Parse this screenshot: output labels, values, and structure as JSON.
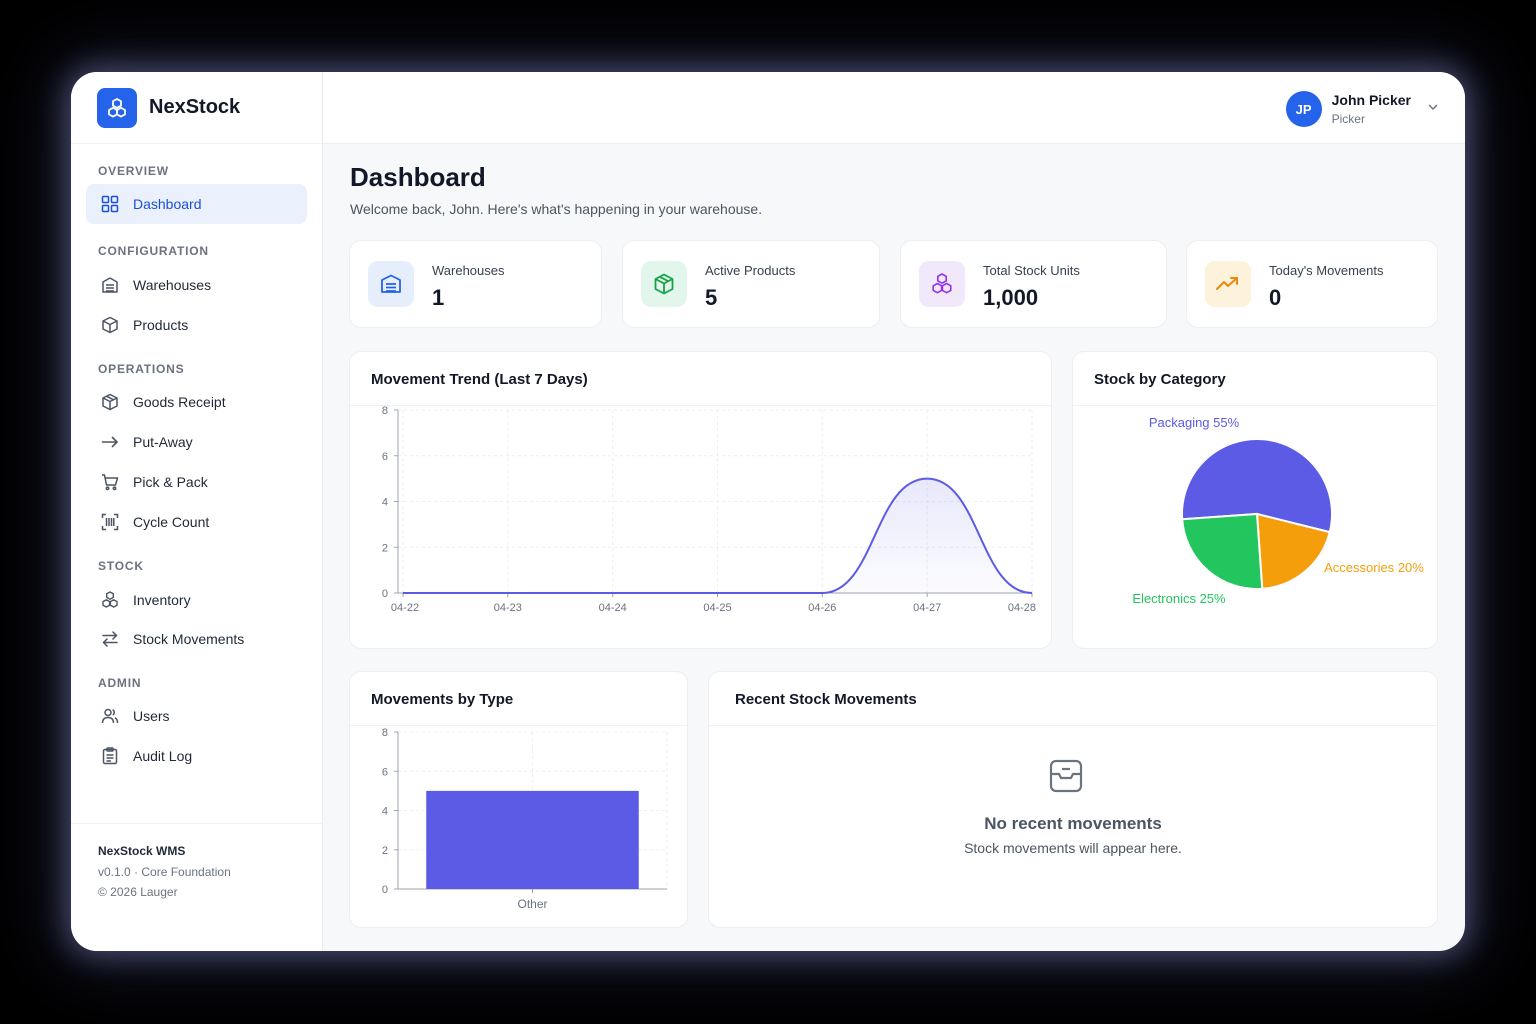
{
  "brand": {
    "name": "NexStock",
    "accent": "#2563eb"
  },
  "sidebar": {
    "sections": [
      {
        "label": "OVERVIEW",
        "items": [
          {
            "label": "Dashboard",
            "icon": "grid-icon",
            "active": true
          }
        ]
      },
      {
        "label": "CONFIGURATION",
        "items": [
          {
            "label": "Warehouses",
            "icon": "warehouse-icon"
          },
          {
            "label": "Products",
            "icon": "cube-icon"
          }
        ]
      },
      {
        "label": "OPERATIONS",
        "items": [
          {
            "label": "Goods Receipt",
            "icon": "package-icon"
          },
          {
            "label": "Put-Away",
            "icon": "arrow-right-icon"
          },
          {
            "label": "Pick & Pack",
            "icon": "cart-icon"
          },
          {
            "label": "Cycle Count",
            "icon": "scan-icon"
          }
        ]
      },
      {
        "label": "STOCK",
        "items": [
          {
            "label": "Inventory",
            "icon": "boxes-icon"
          },
          {
            "label": "Stock Movements",
            "icon": "swap-icon"
          }
        ]
      },
      {
        "label": "ADMIN",
        "items": [
          {
            "label": "Users",
            "icon": "users-icon"
          },
          {
            "label": "Audit Log",
            "icon": "clipboard-icon"
          }
        ]
      }
    ],
    "footer": {
      "product": "NexStock WMS",
      "version": "v0.1.0 · Core Foundation",
      "copyright": "© 2026 Lauger"
    }
  },
  "header": {
    "user": {
      "initials": "JP",
      "name": "John Picker",
      "role": "Picker"
    }
  },
  "page": {
    "title": "Dashboard",
    "subtitle": "Welcome back, John. Here's what's happening in your warehouse."
  },
  "stats": [
    {
      "label": "Warehouses",
      "value": "1",
      "icon": "warehouse-icon",
      "color": "#2563eb",
      "bg": "#e6eefc"
    },
    {
      "label": "Active Products",
      "value": "5",
      "icon": "cube-icon",
      "color": "#16a34a",
      "bg": "#e3f6ec"
    },
    {
      "label": "Total Stock Units",
      "value": "1,000",
      "icon": "boxes-icon",
      "color": "#9333ea",
      "bg": "#f1e8fc"
    },
    {
      "label": "Today's Movements",
      "value": "0",
      "icon": "trend-up-icon",
      "color": "#ea8a0c",
      "bg": "#fdf2dc"
    }
  ],
  "trend_card": {
    "title": "Movement Trend (Last 7 Days)"
  },
  "category_card": {
    "title": "Stock by Category"
  },
  "type_card": {
    "title": "Movements by Type"
  },
  "recent_card": {
    "title": "Recent Stock Movements",
    "empty_title": "No recent movements",
    "empty_sub": "Stock movements will appear here."
  },
  "chart_data": [
    {
      "type": "area",
      "title": "Movement Trend (Last 7 Days)",
      "x": [
        "04-22",
        "04-23",
        "04-24",
        "04-25",
        "04-26",
        "04-27",
        "04-28"
      ],
      "values": [
        0,
        0,
        0,
        0,
        0,
        5,
        0
      ],
      "ylim": [
        0,
        8
      ],
      "yticks": [
        0,
        2,
        4,
        6,
        8
      ],
      "grid": true,
      "color": "#5b5be6"
    },
    {
      "type": "pie",
      "title": "Stock by Category",
      "slices": [
        {
          "label": "Packaging 55%",
          "value": 55,
          "color": "#5b5be6"
        },
        {
          "label": "Accessories 20%",
          "value": 20,
          "color": "#f59e0b"
        },
        {
          "label": "Electronics 25%",
          "value": 25,
          "color": "#22c55e"
        }
      ]
    },
    {
      "type": "bar",
      "title": "Movements by Type",
      "categories": [
        "Other"
      ],
      "values": [
        5
      ],
      "ylim": [
        0,
        8
      ],
      "yticks": [
        0,
        2,
        4,
        6,
        8
      ],
      "grid": true,
      "color": "#5b5be6"
    }
  ]
}
